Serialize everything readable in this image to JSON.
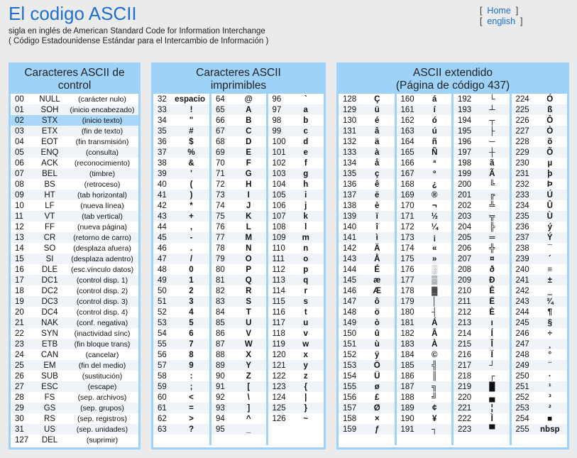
{
  "header": {
    "title": "El codigo ASCII",
    "subtitle1": "sigla en inglés de American Standard Code for Information Interchange",
    "subtitle2": "( Código Estadounidense Estándar para el Intercambio de Información )",
    "links": [
      "Home",
      "english"
    ]
  },
  "panels": {
    "control": {
      "title_line1": "Caracteres ASCII de",
      "title_line2": "control"
    },
    "printable": {
      "title_line1": "Caracteres ASCII",
      "title_line2": "imprimibles"
    },
    "extended": {
      "title_line1": "ASCII extendido",
      "title_line2": "(Página de código 437)"
    }
  },
  "colors": {
    "title": "#1d6fd0",
    "panel_border": "#9fd2f8",
    "highlight_row": "#aad6f7",
    "background": "#ebebeb"
  },
  "control_rows": [
    [
      "00",
      "NULL",
      "(carácter nulo)"
    ],
    [
      "01",
      "SOH",
      "(inicio encabezado)"
    ],
    [
      "02",
      "STX",
      "(inicio texto)"
    ],
    [
      "03",
      "ETX",
      "(fin de texto)"
    ],
    [
      "04",
      "EOT",
      "(fin transmisión)"
    ],
    [
      "05",
      "ENQ",
      "(consulta)"
    ],
    [
      "06",
      "ACK",
      "(reconocimiento)"
    ],
    [
      "07",
      "BEL",
      "(timbre)"
    ],
    [
      "08",
      "BS",
      "(retroceso)"
    ],
    [
      "09",
      "HT",
      "(tab horizontal)"
    ],
    [
      "10",
      "LF",
      "(nueva línea)"
    ],
    [
      "11",
      "VT",
      "(tab vertical)"
    ],
    [
      "12",
      "FF",
      "(nueva página)"
    ],
    [
      "13",
      "CR",
      "(retorno de carro)"
    ],
    [
      "14",
      "SO",
      "(desplaza afuera)"
    ],
    [
      "15",
      "SI",
      "(desplaza adentro)"
    ],
    [
      "16",
      "DLE",
      "(esc.vínculo datos)"
    ],
    [
      "17",
      "DC1",
      "(control disp. 1)"
    ],
    [
      "18",
      "DC2",
      "(control disp. 2)"
    ],
    [
      "19",
      "DC3",
      "(control disp. 3)"
    ],
    [
      "20",
      "DC4",
      "(control disp. 4)"
    ],
    [
      "21",
      "NAK",
      "(conf. negativa)"
    ],
    [
      "22",
      "SYN",
      "(inactividad sínc)"
    ],
    [
      "23",
      "ETB",
      "(fin bloque trans)"
    ],
    [
      "24",
      "CAN",
      "(cancelar)"
    ],
    [
      "25",
      "EM",
      "(fin del medio)"
    ],
    [
      "26",
      "SUB",
      "(sustitución)"
    ],
    [
      "27",
      "ESC",
      "(escape)"
    ],
    [
      "28",
      "FS",
      "(sep. archivos)"
    ],
    [
      "29",
      "GS",
      "(sep. grupos)"
    ],
    [
      "30",
      "RS",
      "(sep. registros)"
    ],
    [
      "31",
      "US",
      "(sep. unidades)"
    ],
    [
      "127",
      "DEL",
      "(suprimir)"
    ]
  ],
  "highlighted_control_index": 2,
  "printable_cols": [
    [
      [
        "32",
        "espacio"
      ],
      [
        "33",
        "!"
      ],
      [
        "34",
        "\""
      ],
      [
        "35",
        "#"
      ],
      [
        "36",
        "$"
      ],
      [
        "37",
        "%"
      ],
      [
        "38",
        "&"
      ],
      [
        "39",
        "'"
      ],
      [
        "40",
        "("
      ],
      [
        "41",
        ")"
      ],
      [
        "42",
        "*"
      ],
      [
        "43",
        "+"
      ],
      [
        "44",
        ","
      ],
      [
        "45",
        "-"
      ],
      [
        "46",
        "."
      ],
      [
        "47",
        "/"
      ],
      [
        "48",
        "0"
      ],
      [
        "49",
        "1"
      ],
      [
        "50",
        "2"
      ],
      [
        "51",
        "3"
      ],
      [
        "52",
        "4"
      ],
      [
        "53",
        "5"
      ],
      [
        "54",
        "6"
      ],
      [
        "55",
        "7"
      ],
      [
        "56",
        "8"
      ],
      [
        "57",
        "9"
      ],
      [
        "58",
        ":"
      ],
      [
        "59",
        ";"
      ],
      [
        "60",
        "<"
      ],
      [
        "61",
        "="
      ],
      [
        "62",
        ">"
      ],
      [
        "63",
        "?"
      ]
    ],
    [
      [
        "64",
        "@"
      ],
      [
        "65",
        "A"
      ],
      [
        "66",
        "B"
      ],
      [
        "67",
        "C"
      ],
      [
        "68",
        "D"
      ],
      [
        "69",
        "E"
      ],
      [
        "70",
        "F"
      ],
      [
        "71",
        "G"
      ],
      [
        "72",
        "H"
      ],
      [
        "73",
        "I"
      ],
      [
        "74",
        "J"
      ],
      [
        "75",
        "K"
      ],
      [
        "76",
        "L"
      ],
      [
        "77",
        "M"
      ],
      [
        "78",
        "N"
      ],
      [
        "79",
        "O"
      ],
      [
        "80",
        "P"
      ],
      [
        "81",
        "Q"
      ],
      [
        "82",
        "R"
      ],
      [
        "83",
        "S"
      ],
      [
        "84",
        "T"
      ],
      [
        "85",
        "U"
      ],
      [
        "86",
        "V"
      ],
      [
        "87",
        "W"
      ],
      [
        "88",
        "X"
      ],
      [
        "89",
        "Y"
      ],
      [
        "90",
        "Z"
      ],
      [
        "91",
        "["
      ],
      [
        "92",
        "\\"
      ],
      [
        "93",
        "]"
      ],
      [
        "94",
        "^"
      ],
      [
        "95",
        "_"
      ]
    ],
    [
      [
        "96",
        "`"
      ],
      [
        "97",
        "a"
      ],
      [
        "98",
        "b"
      ],
      [
        "99",
        "c"
      ],
      [
        "100",
        "d"
      ],
      [
        "101",
        "e"
      ],
      [
        "102",
        "f"
      ],
      [
        "103",
        "g"
      ],
      [
        "104",
        "h"
      ],
      [
        "105",
        "i"
      ],
      [
        "106",
        "j"
      ],
      [
        "107",
        "k"
      ],
      [
        "108",
        "l"
      ],
      [
        "109",
        "m"
      ],
      [
        "110",
        "n"
      ],
      [
        "111",
        "o"
      ],
      [
        "112",
        "p"
      ],
      [
        "113",
        "q"
      ],
      [
        "114",
        "r"
      ],
      [
        "115",
        "s"
      ],
      [
        "116",
        "t"
      ],
      [
        "117",
        "u"
      ],
      [
        "118",
        "v"
      ],
      [
        "119",
        "w"
      ],
      [
        "120",
        "x"
      ],
      [
        "121",
        "y"
      ],
      [
        "122",
        "z"
      ],
      [
        "123",
        "{"
      ],
      [
        "124",
        "|"
      ],
      [
        "125",
        "}"
      ],
      [
        "126",
        "~"
      ]
    ]
  ],
  "extended_cols": [
    [
      [
        "128",
        "Ç"
      ],
      [
        "129",
        "ü"
      ],
      [
        "130",
        "é"
      ],
      [
        "131",
        "â"
      ],
      [
        "132",
        "ä"
      ],
      [
        "133",
        "à"
      ],
      [
        "134",
        "å"
      ],
      [
        "135",
        "ç"
      ],
      [
        "136",
        "ê"
      ],
      [
        "137",
        "ë"
      ],
      [
        "138",
        "è"
      ],
      [
        "139",
        "ï"
      ],
      [
        "140",
        "î"
      ],
      [
        "141",
        "ì"
      ],
      [
        "142",
        "Ä"
      ],
      [
        "143",
        "Å"
      ],
      [
        "144",
        "É"
      ],
      [
        "145",
        "æ"
      ],
      [
        "146",
        "Æ"
      ],
      [
        "147",
        "ô"
      ],
      [
        "148",
        "ö"
      ],
      [
        "149",
        "ò"
      ],
      [
        "150",
        "û"
      ],
      [
        "151",
        "ù"
      ],
      [
        "152",
        "ÿ"
      ],
      [
        "153",
        "Ö"
      ],
      [
        "154",
        "Ü"
      ],
      [
        "155",
        "ø"
      ],
      [
        "156",
        "£"
      ],
      [
        "157",
        "Ø"
      ],
      [
        "158",
        "×"
      ],
      [
        "159",
        "ƒ"
      ]
    ],
    [
      [
        "160",
        "á"
      ],
      [
        "161",
        "í"
      ],
      [
        "162",
        "ó"
      ],
      [
        "163",
        "ú"
      ],
      [
        "164",
        "ñ"
      ],
      [
        "165",
        "Ñ"
      ],
      [
        "166",
        "ª"
      ],
      [
        "167",
        "º"
      ],
      [
        "168",
        "¿"
      ],
      [
        "169",
        "®"
      ],
      [
        "170",
        "¬"
      ],
      [
        "171",
        "½"
      ],
      [
        "172",
        "¼"
      ],
      [
        "173",
        "¡"
      ],
      [
        "174",
        "«"
      ],
      [
        "175",
        "»"
      ],
      [
        "176",
        "░"
      ],
      [
        "177",
        "▒"
      ],
      [
        "178",
        "▓"
      ],
      [
        "179",
        "│"
      ],
      [
        "180",
        "┤"
      ],
      [
        "181",
        "Á"
      ],
      [
        "182",
        "Â"
      ],
      [
        "183",
        "À"
      ],
      [
        "184",
        "©"
      ],
      [
        "185",
        "╣"
      ],
      [
        "186",
        "║"
      ],
      [
        "187",
        "╗"
      ],
      [
        "188",
        "╝"
      ],
      [
        "189",
        "¢"
      ],
      [
        "190",
        "¥"
      ],
      [
        "191",
        "┐"
      ]
    ],
    [
      [
        "192",
        "└"
      ],
      [
        "193",
        "┴"
      ],
      [
        "194",
        "┬"
      ],
      [
        "195",
        "├"
      ],
      [
        "196",
        "─"
      ],
      [
        "197",
        "┼"
      ],
      [
        "198",
        "ã"
      ],
      [
        "199",
        "Ã"
      ],
      [
        "200",
        "╚"
      ],
      [
        "201",
        "╔"
      ],
      [
        "202",
        "╩"
      ],
      [
        "203",
        "╦"
      ],
      [
        "204",
        "╠"
      ],
      [
        "205",
        "═"
      ],
      [
        "206",
        "╬"
      ],
      [
        "207",
        "¤"
      ],
      [
        "208",
        "ð"
      ],
      [
        "209",
        "Ð"
      ],
      [
        "210",
        "Ê"
      ],
      [
        "211",
        "Ë"
      ],
      [
        "212",
        "È"
      ],
      [
        "213",
        "ı"
      ],
      [
        "214",
        "Í"
      ],
      [
        "215",
        "Î"
      ],
      [
        "216",
        "Ï"
      ],
      [
        "217",
        "┘"
      ],
      [
        "218",
        "┌"
      ],
      [
        "219",
        "█"
      ],
      [
        "220",
        "▄"
      ],
      [
        "221",
        "¦"
      ],
      [
        "222",
        "Ì"
      ],
      [
        "223",
        "▀"
      ]
    ],
    [
      [
        "224",
        "Ó"
      ],
      [
        "225",
        "ß"
      ],
      [
        "226",
        "Ô"
      ],
      [
        "227",
        "Ò"
      ],
      [
        "228",
        "õ"
      ],
      [
        "229",
        "Õ"
      ],
      [
        "230",
        "µ"
      ],
      [
        "231",
        "þ"
      ],
      [
        "232",
        "Þ"
      ],
      [
        "233",
        "Ú"
      ],
      [
        "234",
        "Û"
      ],
      [
        "235",
        "Ù"
      ],
      [
        "236",
        "ý"
      ],
      [
        "237",
        "Ý"
      ],
      [
        "238",
        "¯"
      ],
      [
        "239",
        "´"
      ],
      [
        "240",
        "≡"
      ],
      [
        "241",
        "±"
      ],
      [
        "242",
        "‗"
      ],
      [
        "243",
        "¾"
      ],
      [
        "244",
        "¶"
      ],
      [
        "245",
        "§"
      ],
      [
        "246",
        "÷"
      ],
      [
        "247",
        "¸"
      ],
      [
        "248",
        "°"
      ],
      [
        "249",
        "¨"
      ],
      [
        "250",
        "·"
      ],
      [
        "251",
        "¹"
      ],
      [
        "252",
        "³"
      ],
      [
        "253",
        "²"
      ],
      [
        "254",
        "■"
      ],
      [
        "255",
        "nbsp"
      ]
    ]
  ]
}
